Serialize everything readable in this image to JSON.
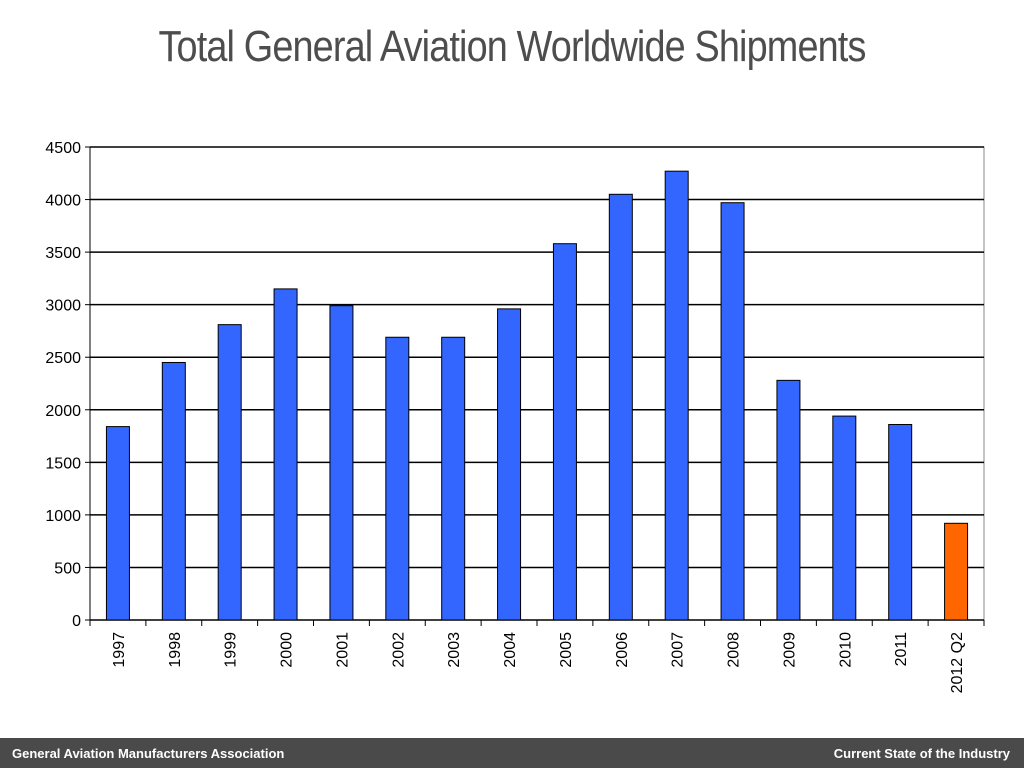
{
  "slide": {
    "title": "Total General Aviation Worldwide Shipments"
  },
  "footer": {
    "left": "General Aviation Manufacturers Association",
    "right": "Current State of the Industry"
  },
  "colors": {
    "bar_default": "#3366ff",
    "bar_highlight": "#ff6600",
    "footer_bg": "#4a4a4a"
  },
  "chart_data": {
    "type": "bar",
    "categories": [
      "1997",
      "1998",
      "1999",
      "2000",
      "2001",
      "2002",
      "2003",
      "2004",
      "2005",
      "2006",
      "2007",
      "2008",
      "2009",
      "2010",
      "2011",
      "2012 Q2"
    ],
    "values": [
      1840,
      2450,
      2810,
      3150,
      2990,
      2690,
      2690,
      2960,
      3580,
      4050,
      4270,
      3970,
      2280,
      1940,
      1860,
      920
    ],
    "highlight_index": 15,
    "yticks": [
      0,
      500,
      1000,
      1500,
      2000,
      2500,
      3000,
      3500,
      4000,
      4500
    ],
    "ylim": [
      0,
      4500
    ],
    "grid": true,
    "legend": "none"
  }
}
